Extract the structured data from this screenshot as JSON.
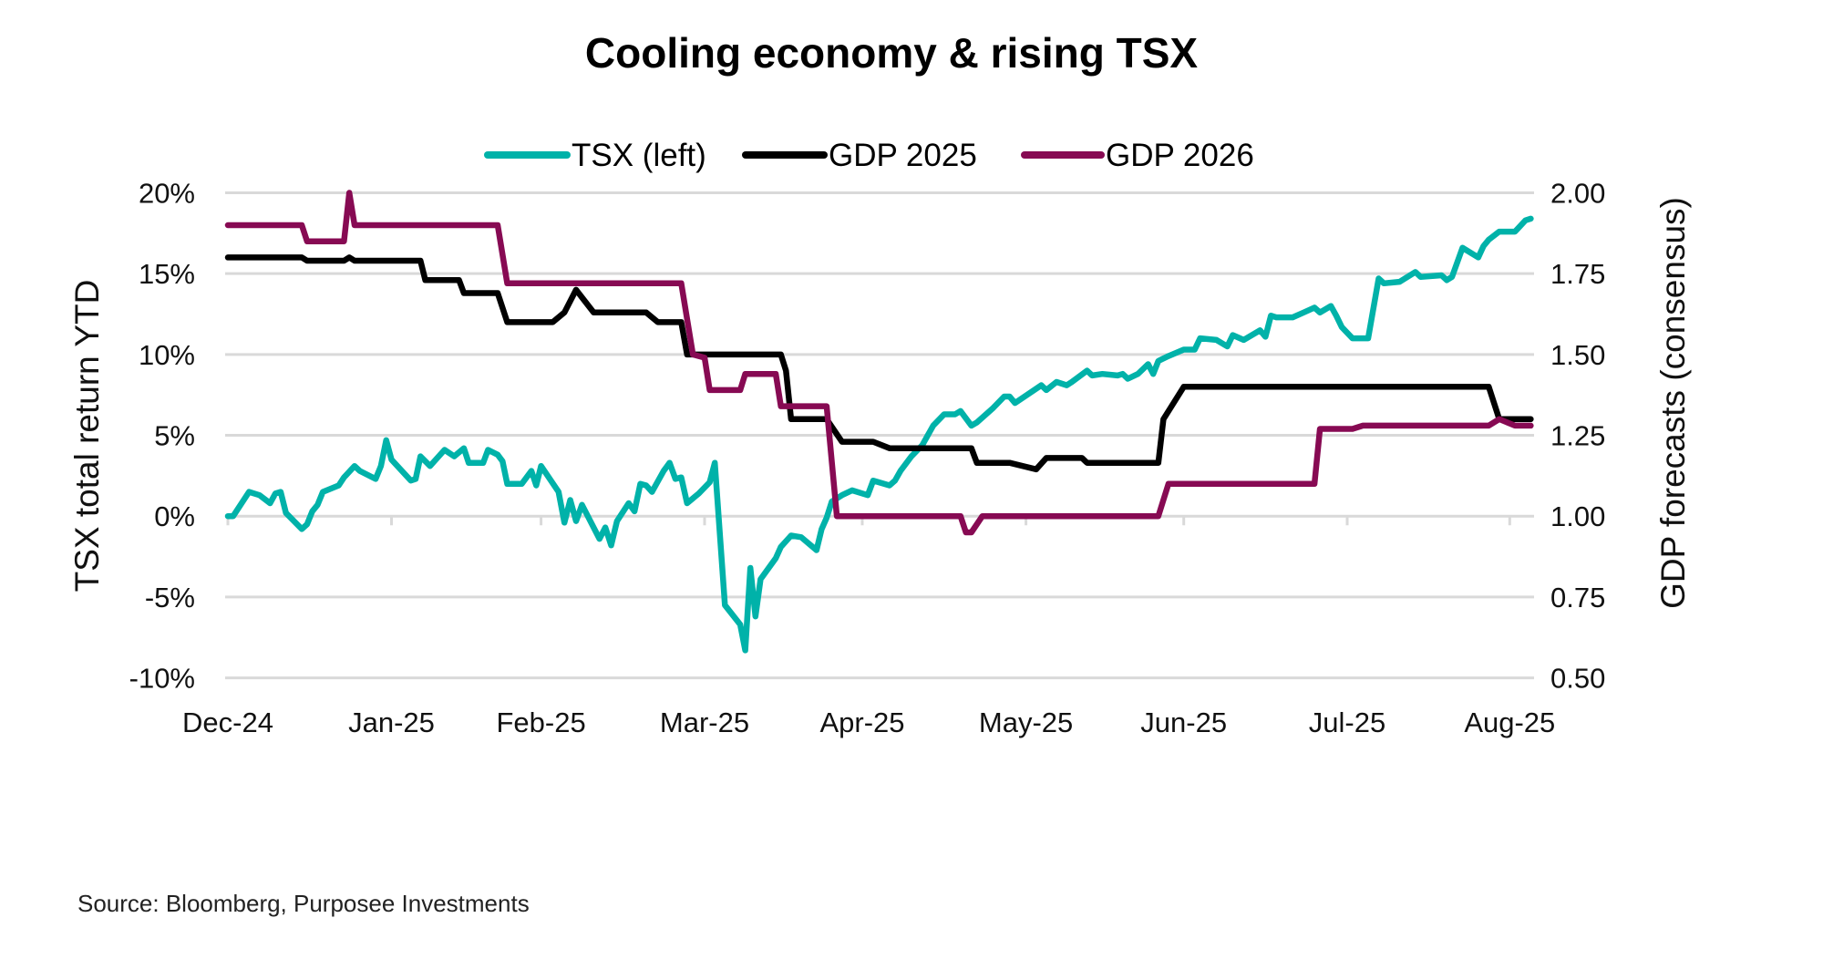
{
  "chart_data": {
    "type": "line",
    "title": "Cooling economy & rising TSX",
    "y_left_label": "TSX total return YTD",
    "y_right_label": "GDP forecasts (consensus)",
    "ylim_left": [
      -10,
      20
    ],
    "ylim_right": [
      0.5,
      2.0
    ],
    "y_left_ticks": [
      "20%",
      "15%",
      "10%",
      "5%",
      "0%",
      "-5%",
      "-10%"
    ],
    "y_left_tick_values": [
      20,
      15,
      10,
      5,
      0,
      -5,
      -10
    ],
    "y_right_ticks": [
      "2.00",
      "1.75",
      "1.50",
      "1.25",
      "1.00",
      "0.75",
      "0.50"
    ],
    "y_right_tick_values": [
      2.0,
      1.75,
      1.5,
      1.25,
      1.0,
      0.75,
      0.5
    ],
    "x_ticks": [
      "Dec-24",
      "Jan-25",
      "Feb-25",
      "Mar-25",
      "Apr-25",
      "May-25",
      "Jun-25",
      "Jul-25",
      "Aug-25"
    ],
    "x_tick_dates": [
      "2024-12-01",
      "2025-01-01",
      "2025-02-01",
      "2025-03-01",
      "2025-04-01",
      "2025-05-01",
      "2025-06-01",
      "2025-07-01",
      "2025-08-01"
    ],
    "grid": "horizontal",
    "legend_position": "top",
    "series": [
      {
        "name": "TSX (left)",
        "axis": "left",
        "color": "#00b2a9",
        "points": [
          [
            "2024-12-01",
            0
          ],
          [
            "2024-12-02",
            0
          ],
          [
            "2024-12-05",
            1.5
          ],
          [
            "2024-12-07",
            1.3
          ],
          [
            "2024-12-09",
            0.8
          ],
          [
            "2024-12-10",
            1.4
          ],
          [
            "2024-12-11",
            1.5
          ],
          [
            "2024-12-12",
            0.2
          ],
          [
            "2024-12-15",
            -0.8
          ],
          [
            "2024-12-16",
            -0.5
          ],
          [
            "2024-12-17",
            0.3
          ],
          [
            "2024-12-18",
            0.7
          ],
          [
            "2024-12-19",
            1.5
          ],
          [
            "2024-12-22",
            1.9
          ],
          [
            "2024-12-23",
            2.4
          ],
          [
            "2024-12-25",
            3.1
          ],
          [
            "2024-12-26",
            2.8
          ],
          [
            "2024-12-29",
            2.3
          ],
          [
            "2024-12-30",
            3.1
          ],
          [
            "2024-12-31",
            4.7
          ],
          [
            "2025-01-01",
            3.5
          ],
          [
            "2025-01-05",
            2.2
          ],
          [
            "2025-01-06",
            2.3
          ],
          [
            "2025-01-07",
            3.7
          ],
          [
            "2025-01-09",
            3.1
          ],
          [
            "2025-01-12",
            4.1
          ],
          [
            "2025-01-14",
            3.7
          ],
          [
            "2025-01-16",
            4.2
          ],
          [
            "2025-01-17",
            3.3
          ],
          [
            "2025-01-20",
            3.3
          ],
          [
            "2025-01-21",
            4.1
          ],
          [
            "2025-01-23",
            3.8
          ],
          [
            "2025-01-24",
            3.4
          ],
          [
            "2025-01-25",
            2.0
          ],
          [
            "2025-01-28",
            2.0
          ],
          [
            "2025-01-30",
            2.8
          ],
          [
            "2025-01-31",
            1.9
          ],
          [
            "2025-02-01",
            3.1
          ],
          [
            "2025-02-04",
            1.5
          ],
          [
            "2025-02-05",
            -0.4
          ],
          [
            "2025-02-06",
            1.0
          ],
          [
            "2025-02-07",
            -0.3
          ],
          [
            "2025-02-08",
            0.7
          ],
          [
            "2025-02-11",
            -1.4
          ],
          [
            "2025-02-12",
            -0.7
          ],
          [
            "2025-02-13",
            -1.8
          ],
          [
            "2025-02-14",
            -0.3
          ],
          [
            "2025-02-16",
            0.8
          ],
          [
            "2025-02-17",
            0.3
          ],
          [
            "2025-02-18",
            2.0
          ],
          [
            "2025-02-19",
            1.9
          ],
          [
            "2025-02-20",
            1.5
          ],
          [
            "2025-02-22",
            2.8
          ],
          [
            "2025-02-23",
            3.3
          ],
          [
            "2025-02-24",
            2.3
          ],
          [
            "2025-02-25",
            2.4
          ],
          [
            "2025-02-26",
            0.8
          ],
          [
            "2025-02-28",
            1.4
          ],
          [
            "2025-03-02",
            2.1
          ],
          [
            "2025-03-03",
            3.3
          ],
          [
            "2025-03-05",
            -5.5
          ],
          [
            "2025-03-08",
            -6.7
          ],
          [
            "2025-03-09",
            -8.3
          ],
          [
            "2025-03-10",
            -3.2
          ],
          [
            "2025-03-11",
            -6.2
          ],
          [
            "2025-03-12",
            -3.9
          ],
          [
            "2025-03-15",
            -2.6
          ],
          [
            "2025-03-16",
            -1.9
          ],
          [
            "2025-03-18",
            -1.2
          ],
          [
            "2025-03-20",
            -1.3
          ],
          [
            "2025-03-23",
            -2.1
          ],
          [
            "2025-03-24",
            -0.8
          ],
          [
            "2025-03-25",
            -0.1
          ],
          [
            "2025-03-26",
            0.9
          ],
          [
            "2025-03-28",
            1.3
          ],
          [
            "2025-03-30",
            1.6
          ],
          [
            "2025-04-02",
            1.3
          ],
          [
            "2025-04-03",
            2.2
          ],
          [
            "2025-04-06",
            1.9
          ],
          [
            "2025-04-07",
            2.2
          ],
          [
            "2025-04-08",
            2.8
          ],
          [
            "2025-04-10",
            3.7
          ],
          [
            "2025-04-12",
            4.4
          ],
          [
            "2025-04-14",
            5.6
          ],
          [
            "2025-04-16",
            6.3
          ],
          [
            "2025-04-18",
            6.3
          ],
          [
            "2025-04-19",
            6.5
          ],
          [
            "2025-04-21",
            5.6
          ],
          [
            "2025-04-22",
            5.8
          ],
          [
            "2025-04-25",
            6.7
          ],
          [
            "2025-04-27",
            7.4
          ],
          [
            "2025-04-28",
            7.4
          ],
          [
            "2025-04-29",
            7.0
          ],
          [
            "2025-05-04",
            8.1
          ],
          [
            "2025-05-05",
            7.8
          ],
          [
            "2025-05-07",
            8.3
          ],
          [
            "2025-05-09",
            8.1
          ],
          [
            "2025-05-10",
            8.3
          ],
          [
            "2025-05-13",
            9.0
          ],
          [
            "2025-05-14",
            8.7
          ],
          [
            "2025-05-16",
            8.8
          ],
          [
            "2025-05-19",
            8.7
          ],
          [
            "2025-05-20",
            8.8
          ],
          [
            "2025-05-21",
            8.5
          ],
          [
            "2025-05-23",
            8.8
          ],
          [
            "2025-05-25",
            9.4
          ],
          [
            "2025-05-26",
            8.8
          ],
          [
            "2025-05-27",
            9.6
          ],
          [
            "2025-05-29",
            9.9
          ],
          [
            "2025-06-01",
            10.3
          ],
          [
            "2025-06-03",
            10.3
          ],
          [
            "2025-06-04",
            11.0
          ],
          [
            "2025-06-07",
            10.9
          ],
          [
            "2025-06-09",
            10.5
          ],
          [
            "2025-06-10",
            11.2
          ],
          [
            "2025-06-12",
            10.9
          ],
          [
            "2025-06-15",
            11.5
          ],
          [
            "2025-06-16",
            11.1
          ],
          [
            "2025-06-17",
            12.4
          ],
          [
            "2025-06-18",
            12.3
          ],
          [
            "2025-06-21",
            12.3
          ],
          [
            "2025-06-23",
            12.6
          ],
          [
            "2025-06-25",
            12.9
          ],
          [
            "2025-06-26",
            12.6
          ],
          [
            "2025-06-28",
            13.0
          ],
          [
            "2025-06-29",
            12.4
          ],
          [
            "2025-06-30",
            11.7
          ],
          [
            "2025-07-02",
            11.0
          ],
          [
            "2025-07-05",
            11.0
          ],
          [
            "2025-07-07",
            14.7
          ],
          [
            "2025-07-08",
            14.4
          ],
          [
            "2025-07-11",
            14.5
          ],
          [
            "2025-07-14",
            15.1
          ],
          [
            "2025-07-15",
            14.8
          ],
          [
            "2025-07-19",
            14.9
          ],
          [
            "2025-07-20",
            14.6
          ],
          [
            "2025-07-21",
            14.8
          ],
          [
            "2025-07-23",
            16.6
          ],
          [
            "2025-07-26",
            16.0
          ],
          [
            "2025-07-27",
            16.7
          ],
          [
            "2025-07-28",
            17.1
          ],
          [
            "2025-07-30",
            17.6
          ],
          [
            "2025-08-02",
            17.6
          ],
          [
            "2025-08-04",
            18.3
          ],
          [
            "2025-08-05",
            18.4
          ]
        ]
      },
      {
        "name": "GDP 2025",
        "axis": "right",
        "color": "#000000",
        "points": [
          [
            "2024-12-01",
            1.8
          ],
          [
            "2024-12-15",
            1.8
          ],
          [
            "2024-12-16",
            1.79
          ],
          [
            "2024-12-23",
            1.79
          ],
          [
            "2024-12-24",
            1.8
          ],
          [
            "2024-12-25",
            1.79
          ],
          [
            "2025-01-07",
            1.79
          ],
          [
            "2025-01-08",
            1.73
          ],
          [
            "2025-01-15",
            1.73
          ],
          [
            "2025-01-16",
            1.69
          ],
          [
            "2025-01-23",
            1.69
          ],
          [
            "2025-01-25",
            1.6
          ],
          [
            "2025-02-03",
            1.6
          ],
          [
            "2025-02-05",
            1.63
          ],
          [
            "2025-02-07",
            1.7
          ],
          [
            "2025-02-10",
            1.63
          ],
          [
            "2025-02-19",
            1.63
          ],
          [
            "2025-02-21",
            1.6
          ],
          [
            "2025-02-25",
            1.6
          ],
          [
            "2025-02-26",
            1.5
          ],
          [
            "2025-03-16",
            1.5
          ],
          [
            "2025-03-17",
            1.45
          ],
          [
            "2025-03-18",
            1.3
          ],
          [
            "2025-03-25",
            1.3
          ],
          [
            "2025-03-28",
            1.23
          ],
          [
            "2025-04-03",
            1.23
          ],
          [
            "2025-04-06",
            1.21
          ],
          [
            "2025-04-21",
            1.21
          ],
          [
            "2025-04-22",
            1.165
          ],
          [
            "2025-04-28",
            1.165
          ],
          [
            "2025-05-03",
            1.145
          ],
          [
            "2025-05-05",
            1.18
          ],
          [
            "2025-05-12",
            1.18
          ],
          [
            "2025-05-13",
            1.165
          ],
          [
            "2025-05-27",
            1.165
          ],
          [
            "2025-05-28",
            1.3
          ],
          [
            "2025-06-01",
            1.4
          ],
          [
            "2025-07-28",
            1.4
          ],
          [
            "2025-07-30",
            1.3
          ],
          [
            "2025-08-05",
            1.3
          ]
        ]
      },
      {
        "name": "GDP 2026",
        "axis": "right",
        "color": "#870a53",
        "points": [
          [
            "2024-12-01",
            1.9
          ],
          [
            "2024-12-15",
            1.9
          ],
          [
            "2024-12-16",
            1.85
          ],
          [
            "2024-12-23",
            1.85
          ],
          [
            "2024-12-24",
            2.0
          ],
          [
            "2024-12-25",
            1.9
          ],
          [
            "2025-01-23",
            1.9
          ],
          [
            "2025-01-25",
            1.72
          ],
          [
            "2025-02-25",
            1.72
          ],
          [
            "2025-02-27",
            1.5
          ],
          [
            "2025-03-01",
            1.49
          ],
          [
            "2025-03-02",
            1.39
          ],
          [
            "2025-03-08",
            1.39
          ],
          [
            "2025-03-09",
            1.44
          ],
          [
            "2025-03-15",
            1.44
          ],
          [
            "2025-03-16",
            1.34
          ],
          [
            "2025-03-25",
            1.34
          ],
          [
            "2025-03-27",
            1.0
          ],
          [
            "2025-04-19",
            1.0
          ],
          [
            "2025-04-20",
            0.95
          ],
          [
            "2025-04-21",
            0.95
          ],
          [
            "2025-04-23",
            1.0
          ],
          [
            "2025-05-27",
            1.0
          ],
          [
            "2025-05-29",
            1.1
          ],
          [
            "2025-06-25",
            1.1
          ],
          [
            "2025-06-26",
            1.27
          ],
          [
            "2025-07-02",
            1.27
          ],
          [
            "2025-07-04",
            1.28
          ],
          [
            "2025-07-28",
            1.28
          ],
          [
            "2025-07-30",
            1.3
          ],
          [
            "2025-08-02",
            1.28
          ],
          [
            "2025-08-05",
            1.28
          ]
        ]
      }
    ]
  },
  "source": "Source: Bloomberg, Purposee Investments"
}
